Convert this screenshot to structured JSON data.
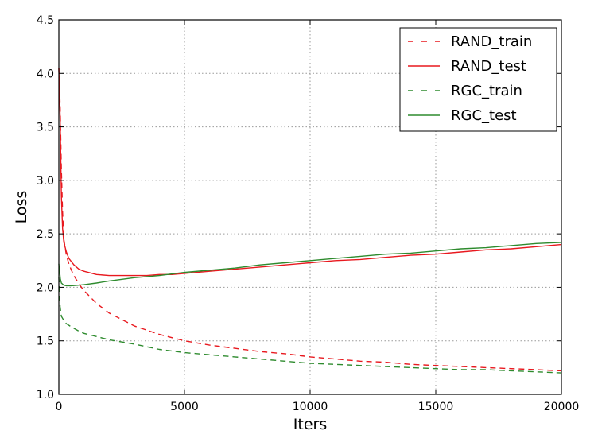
{
  "chart_data": {
    "type": "line",
    "title": "",
    "xlabel": "Iters",
    "ylabel": "Loss",
    "xlim": [
      0,
      20000
    ],
    "ylim": [
      1.0,
      4.5
    ],
    "xticks": [
      0,
      5000,
      10000,
      15000,
      20000
    ],
    "xtick_labels": [
      "0",
      "5000",
      "10000",
      "15000",
      "20000"
    ],
    "yticks": [
      1.0,
      1.5,
      2.0,
      2.5,
      3.0,
      3.5,
      4.0,
      4.5
    ],
    "ytick_labels": [
      "1.0",
      "1.5",
      "2.0",
      "2.5",
      "3.0",
      "3.5",
      "4.0",
      "4.5"
    ],
    "grid": true,
    "legend_position": "top-right",
    "series": [
      {
        "name": "RAND_train",
        "color": "#e8191f",
        "style": "dashed",
        "x": [
          0,
          50,
          100,
          150,
          200,
          300,
          400,
          500,
          600,
          800,
          1000,
          1500,
          2000,
          2500,
          3000,
          4000,
          5000,
          6000,
          7000,
          8000,
          9000,
          10000,
          11000,
          12000,
          13000,
          14000,
          15000,
          16000,
          17000,
          18000,
          19000,
          20000
        ],
        "y": [
          4.05,
          3.7,
          3.1,
          2.7,
          2.45,
          2.3,
          2.22,
          2.16,
          2.11,
          2.03,
          1.97,
          1.85,
          1.76,
          1.7,
          1.64,
          1.56,
          1.5,
          1.46,
          1.43,
          1.4,
          1.38,
          1.35,
          1.33,
          1.31,
          1.3,
          1.28,
          1.27,
          1.26,
          1.25,
          1.24,
          1.23,
          1.22
        ]
      },
      {
        "name": "RAND_test",
        "color": "#e8191f",
        "style": "solid",
        "x": [
          0,
          50,
          100,
          150,
          200,
          300,
          400,
          600,
          800,
          1000,
          1500,
          2000,
          2500,
          3000,
          3500,
          4000,
          4500,
          5000,
          6000,
          7000,
          8000,
          9000,
          10000,
          11000,
          12000,
          13000,
          14000,
          15000,
          16000,
          17000,
          18000,
          19000,
          20000
        ],
        "y": [
          4.05,
          3.6,
          2.85,
          2.55,
          2.42,
          2.33,
          2.27,
          2.21,
          2.17,
          2.15,
          2.12,
          2.11,
          2.11,
          2.11,
          2.11,
          2.12,
          2.12,
          2.13,
          2.15,
          2.17,
          2.19,
          2.21,
          2.23,
          2.25,
          2.26,
          2.28,
          2.3,
          2.31,
          2.33,
          2.35,
          2.36,
          2.38,
          2.4
        ]
      },
      {
        "name": "RGC_train",
        "color": "#2e8b2e",
        "style": "dashed",
        "x": [
          0,
          50,
          100,
          200,
          300,
          500,
          800,
          1000,
          1500,
          2000,
          3000,
          4000,
          5000,
          6000,
          7000,
          8000,
          9000,
          10000,
          11000,
          12000,
          13000,
          14000,
          15000,
          16000,
          17000,
          18000,
          19000,
          20000
        ],
        "y": [
          2.1,
          1.82,
          1.73,
          1.69,
          1.66,
          1.63,
          1.59,
          1.57,
          1.54,
          1.51,
          1.47,
          1.42,
          1.39,
          1.37,
          1.35,
          1.33,
          1.31,
          1.29,
          1.28,
          1.27,
          1.26,
          1.25,
          1.24,
          1.23,
          1.23,
          1.22,
          1.21,
          1.2
        ]
      },
      {
        "name": "RGC_test",
        "color": "#2e8b2e",
        "style": "solid",
        "x": [
          0,
          30,
          60,
          100,
          150,
          200,
          300,
          500,
          800,
          1000,
          1500,
          2000,
          3000,
          4000,
          5000,
          6000,
          7000,
          8000,
          9000,
          10000,
          11000,
          12000,
          13000,
          14000,
          15000,
          16000,
          17000,
          18000,
          19000,
          20000
        ],
        "y": [
          2.22,
          2.15,
          2.08,
          2.04,
          2.03,
          2.02,
          2.015,
          2.015,
          2.02,
          2.025,
          2.04,
          2.06,
          2.09,
          2.11,
          2.14,
          2.16,
          2.18,
          2.21,
          2.23,
          2.25,
          2.27,
          2.29,
          2.31,
          2.32,
          2.34,
          2.36,
          2.37,
          2.39,
          2.41,
          2.42
        ]
      }
    ]
  }
}
